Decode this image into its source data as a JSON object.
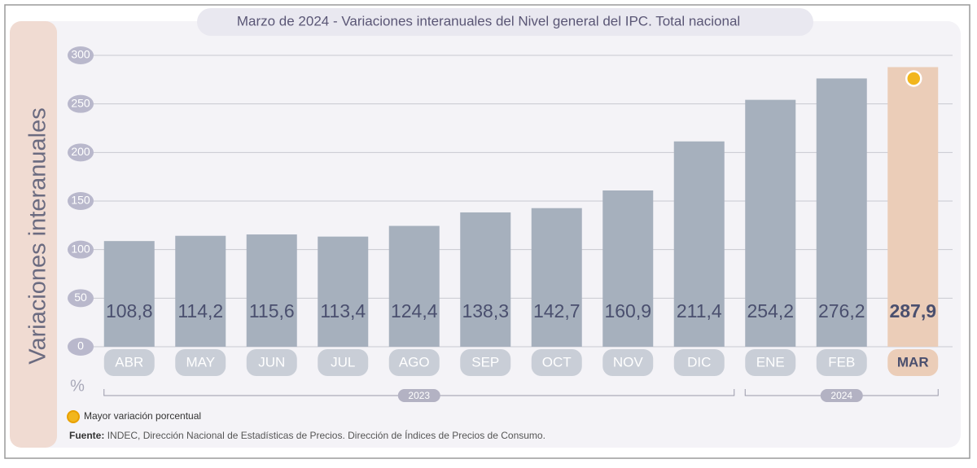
{
  "chart_data": {
    "type": "bar",
    "title": "Marzo de 2024 - Variaciones interanuales del Nivel general del IPC. Total nacional",
    "y_label": "Variaciones interanuales",
    "unit": "%",
    "categories": [
      "ABR",
      "MAY",
      "JUN",
      "JUL",
      "AGO",
      "SEP",
      "OCT",
      "NOV",
      "DIC",
      "ENE",
      "FEB",
      "MAR"
    ],
    "values": [
      108.8,
      114.2,
      115.6,
      113.4,
      124.4,
      138.3,
      142.7,
      160.9,
      211.4,
      254.2,
      276.2,
      287.9
    ],
    "value_labels": [
      "108,8",
      "114,2",
      "115,6",
      "113,4",
      "124,4",
      "138,3",
      "142,7",
      "160,9",
      "211,4",
      "254,2",
      "276,2",
      "287,9"
    ],
    "color": "#a6b0bd",
    "highlight": "MAR",
    "highlight_color": "#ebcdb8",
    "marker_color": "#f2b61d",
    "ylim": [
      0,
      300
    ],
    "yticks": [
      0,
      50,
      100,
      150,
      200,
      250,
      300
    ],
    "grid": true,
    "groups": [
      {
        "label": "2023",
        "first": "ABR",
        "last": "DIC"
      },
      {
        "label": "2024",
        "first": "ENE",
        "last": "MAR"
      }
    ],
    "legend": "Mayor variación porcentual",
    "source_label": "Fuente:",
    "source": "INDEC, Dirección Nacional de Estadísticas de Precios. Dirección de Índices de Precios de Consumo."
  }
}
